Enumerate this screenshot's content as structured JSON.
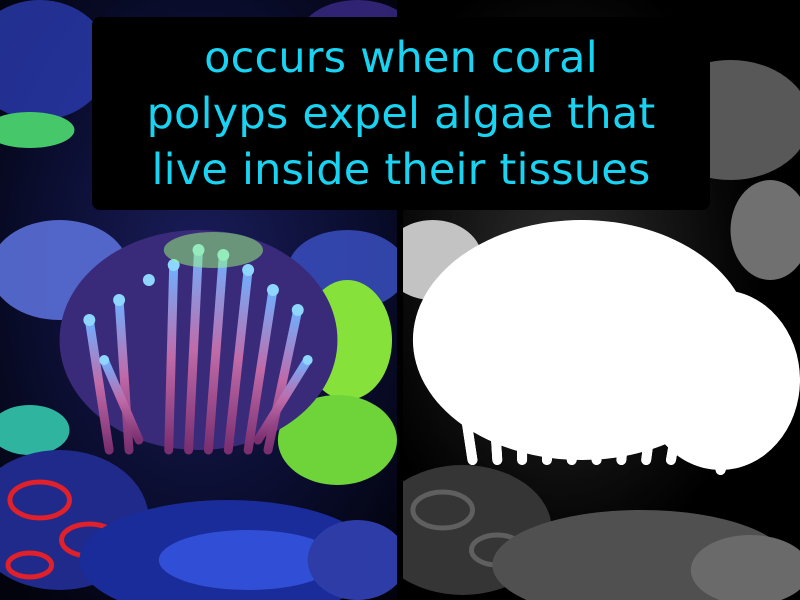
{
  "caption": {
    "lines": [
      "occurs when coral",
      "polyps expel algae that",
      "live inside their tissues"
    ]
  },
  "colors": {
    "caption_text": "#19d3f2",
    "caption_background": "#000000",
    "background": "#050818",
    "coral_blue": "#3d5bff",
    "coral_purple": "#8a3cc8",
    "coral_green": "#7cf23a",
    "coral_pink": "#e05a9a",
    "coral_red": "#e0202a"
  },
  "panels": [
    {
      "name": "healthy-coral-photo",
      "variant": "color"
    },
    {
      "name": "bleached-coral-photo",
      "variant": "grayscale"
    }
  ]
}
